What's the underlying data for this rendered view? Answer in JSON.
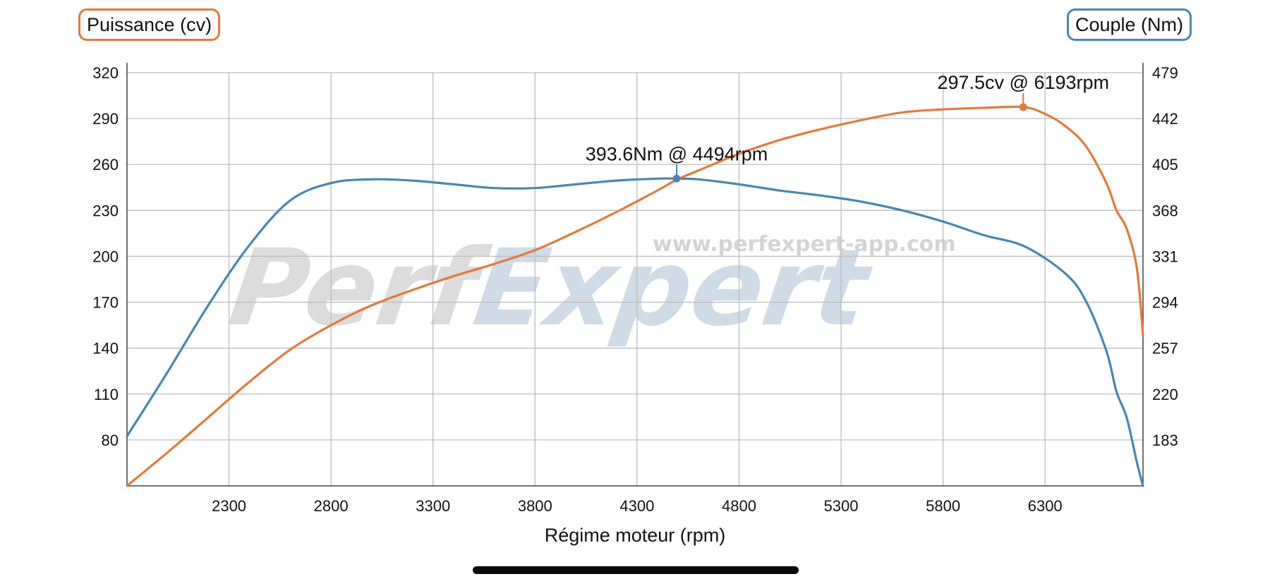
{
  "chart_data": {
    "type": "line",
    "xlabel": "Régime moteur (rpm)",
    "x_ticks": [
      2300,
      2800,
      3300,
      3800,
      4300,
      4800,
      5300,
      5800,
      6300
    ],
    "xlim": [
      1800,
      6780
    ],
    "left_axis": {
      "label": "Puissance (cv)",
      "ticks": [
        80,
        110,
        140,
        170,
        200,
        230,
        260,
        290,
        320
      ],
      "ylim": [
        50,
        320
      ],
      "color": "#e5793a"
    },
    "right_axis": {
      "label": "Couple (Nm)",
      "ticks": [
        183,
        220,
        257,
        294,
        331,
        368,
        405,
        442,
        479
      ],
      "ylim": [
        146,
        479
      ],
      "color": "#4a86b0"
    },
    "grid": true,
    "series": [
      {
        "name": "Puissance (cv)",
        "axis": "left",
        "color": "#e5793a",
        "x": [
          1800,
          2000,
          2200,
          2400,
          2600,
          2800,
          3000,
          3200,
          3400,
          3600,
          3800,
          4000,
          4200,
          4400,
          4494,
          4600,
          4800,
          5000,
          5200,
          5400,
          5600,
          5800,
          6000,
          6193,
          6300,
          6400,
          6500,
          6600,
          6650,
          6700,
          6750,
          6780
        ],
        "y": [
          50,
          72,
          95,
          118,
          139,
          155,
          168,
          178,
          187,
          195,
          204,
          216,
          229,
          243,
          250,
          256,
          267,
          276,
          283,
          289,
          294,
          296,
          297,
          297.5,
          293,
          285,
          272,
          248,
          230,
          218,
          192,
          148
        ]
      },
      {
        "name": "Couple (Nm)",
        "axis": "right",
        "color": "#4a86b0",
        "x": [
          1800,
          2000,
          2200,
          2400,
          2600,
          2800,
          3000,
          3200,
          3400,
          3600,
          3800,
          4000,
          4200,
          4400,
          4494,
          4600,
          4800,
          5000,
          5200,
          5400,
          5600,
          5800,
          6000,
          6200,
          6400,
          6500,
          6600,
          6650,
          6700,
          6750,
          6780
        ],
        "y": [
          186,
          238,
          292,
          340,
          376,
          390,
          393,
          392,
          389,
          386,
          386,
          389,
          392,
          393.6,
          393.6,
          393,
          389,
          384,
          380,
          375,
          368,
          359,
          348,
          339,
          317,
          295,
          255,
          222,
          201,
          165,
          146
        ]
      }
    ],
    "annotations": [
      {
        "series": 0,
        "x": 6193,
        "y": 297.5,
        "text": "297.5cv @ 6193rpm"
      },
      {
        "series": 1,
        "x": 4494,
        "y": 393.6,
        "text": "393.6Nm @ 4494rpm"
      }
    ],
    "watermark": {
      "logo": [
        "Perf",
        "Expert"
      ],
      "url": "www.perfexpert-app.com"
    }
  },
  "device": {
    "home_indicator": "home-indicator"
  }
}
